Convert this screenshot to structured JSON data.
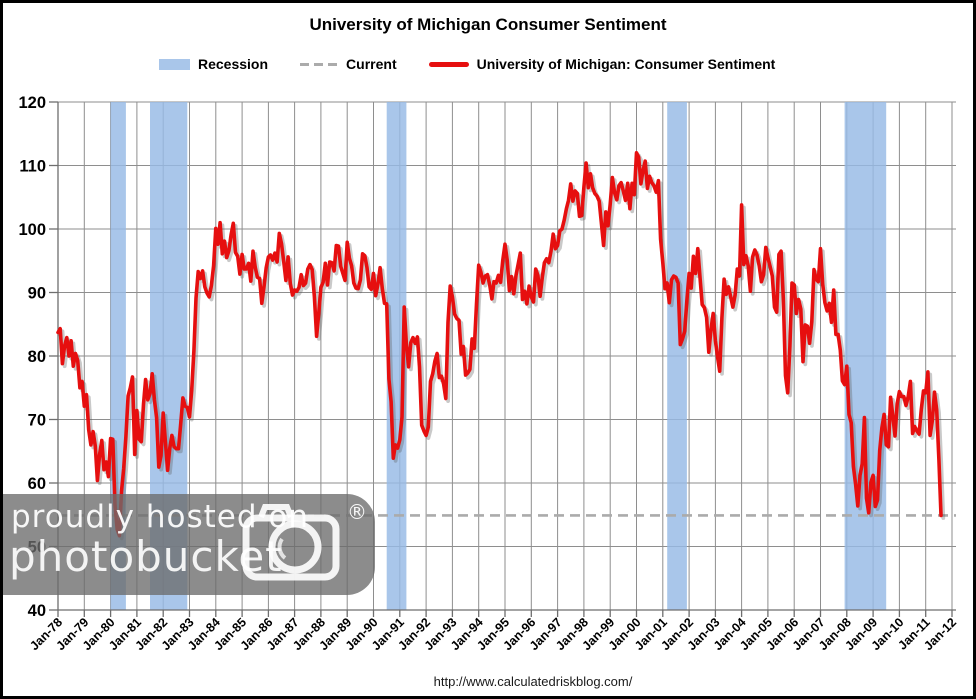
{
  "title": "University of Michigan Consumer Sentiment",
  "legend": {
    "recession_label": "Recession",
    "current_label": "Current",
    "series_label": "University of Michigan: Consumer Sentiment"
  },
  "footer_url": "http://www.calculatedriskblog.com/",
  "watermark": {
    "line1": "proudly hosted on",
    "line2": "photobucket",
    "registered_mark": "®"
  },
  "colors": {
    "series": "#E60F0F",
    "series_shadow": "rgba(90,90,90,0.33)",
    "recession_band": "#A9C6EA",
    "recession_band_rgba": "rgba(150,185,229,0.82)",
    "current_line": "#ABABAB",
    "gridline": "#8E8E8E",
    "axis": "#6E6E6E",
    "text": "#000000"
  },
  "chart_data": {
    "type": "line",
    "title": "University of Michigan Consumer Sentiment",
    "xlabel": "",
    "ylabel": "",
    "grid": true,
    "legend_position": "top",
    "ylim": [
      40,
      120
    ],
    "xlim_years": [
      1978,
      2012
    ],
    "y_ticks": [
      40,
      50,
      60,
      70,
      80,
      90,
      100,
      110,
      120
    ],
    "x_tick_labels": [
      "Jan-78",
      "Jan-79",
      "Jan-80",
      "Jan-81",
      "Jan-82",
      "Jan-83",
      "Jan-84",
      "Jan-85",
      "Jan-86",
      "Jan-87",
      "Jan-88",
      "Jan-89",
      "Jan-90",
      "Jan-91",
      "Jan-92",
      "Jan-93",
      "Jan-94",
      "Jan-95",
      "Jan-96",
      "Jan-97",
      "Jan-98",
      "Jan-99",
      "Jan-00",
      "Jan-01",
      "Jan-02",
      "Jan-03",
      "Jan-04",
      "Jan-05",
      "Jan-06",
      "Jan-07",
      "Jan-08",
      "Jan-09",
      "Jan-10",
      "Jan-11",
      "Jan-12"
    ],
    "current_value": 54.9,
    "recession_bands_years": [
      [
        1980.0,
        1980.583
      ],
      [
        1981.5,
        1982.917
      ],
      [
        1990.5,
        1991.25
      ],
      [
        2001.167,
        2001.917
      ],
      [
        2007.917,
        2009.5
      ]
    ],
    "series": [
      {
        "name": "University of Michigan: Consumer Sentiment",
        "start": "Jan-1978",
        "frequency": "monthly",
        "values": [
          83.7,
          84.3,
          78.8,
          81.6,
          82.9,
          80.0,
          82.4,
          78.4,
          80.4,
          79.3,
          75.0,
          76.0,
          72.1,
          73.9,
          68.4,
          66.0,
          68.1,
          65.8,
          60.4,
          64.5,
          66.7,
          62.1,
          63.3,
          61.0,
          67.0,
          66.9,
          56.5,
          52.7,
          51.7,
          58.7,
          62.3,
          67.3,
          73.7,
          75.0,
          76.7,
          64.5,
          71.4,
          66.9,
          66.5,
          72.4,
          76.3,
          73.1,
          74.1,
          77.2,
          73.1,
          70.3,
          62.5,
          64.3,
          71.0,
          66.5,
          62.0,
          65.5,
          67.5,
          65.7,
          65.4,
          65.4,
          69.3,
          73.4,
          72.1,
          71.9,
          70.4,
          74.6,
          80.8,
          89.1,
          93.3,
          92.2,
          93.4,
          90.9,
          89.9,
          89.3,
          91.1,
          94.2,
          100.1,
          97.6,
          101.0,
          96.1,
          98.1,
          95.5,
          96.6,
          99.1,
          100.9,
          96.3,
          95.7,
          92.9,
          96.0,
          93.7,
          93.7,
          94.6,
          91.8,
          96.5,
          94.0,
          92.4,
          92.2,
          88.3,
          90.9,
          93.9,
          95.6,
          95.9,
          95.1,
          96.2,
          94.8,
          99.3,
          97.7,
          94.9,
          91.9,
          95.6,
          91.4,
          89.6,
          90.4,
          90.2,
          90.8,
          92.8,
          91.1,
          91.5,
          93.7,
          94.4,
          93.6,
          89.3,
          83.1,
          86.8,
          90.8,
          91.6,
          94.6,
          91.2,
          94.8,
          94.7,
          93.4,
          97.4,
          97.3,
          94.1,
          93.0,
          91.9,
          97.9,
          95.4,
          94.2,
          91.5,
          90.7,
          90.6,
          92.0,
          96.1,
          95.8,
          93.9,
          90.9,
          90.5,
          93.0,
          89.5,
          91.3,
          93.9,
          90.6,
          88.3,
          88.2,
          76.4,
          72.8,
          63.9,
          66.0,
          65.5,
          66.8,
          70.4,
          87.7,
          81.8,
          78.3,
          82.1,
          82.9,
          82.0,
          83.0,
          78.3,
          69.1,
          68.2,
          67.5,
          68.8,
          76.0,
          77.2,
          79.2,
          80.4,
          76.6,
          76.8,
          75.6,
          73.3,
          85.3,
          91.0,
          89.3,
          86.6,
          85.9,
          85.6,
          80.3,
          81.5,
          77.0,
          77.3,
          77.9,
          82.7,
          81.2,
          88.2,
          94.3,
          93.2,
          91.5,
          92.6,
          92.8,
          91.2,
          89.0,
          91.7,
          91.5,
          92.7,
          91.6,
          95.1,
          97.6,
          95.1,
          90.3,
          92.5,
          89.8,
          92.7,
          94.4,
          96.2,
          88.9,
          90.2,
          88.2,
          91.0,
          89.3,
          88.5,
          93.7,
          92.7,
          89.4,
          92.4,
          94.7,
          95.3,
          94.7,
          96.5,
          99.2,
          96.9,
          97.4,
          99.7,
          100.0,
          101.4,
          103.2,
          104.5,
          107.1,
          104.4,
          106.0,
          105.6,
          102.0,
          102.1,
          106.6,
          110.4,
          106.5,
          108.7,
          106.5,
          105.6,
          105.2,
          104.4,
          100.9,
          97.4,
          102.7,
          100.5,
          103.9,
          108.1,
          105.7,
          104.6,
          106.8,
          107.3,
          106.0,
          104.5,
          107.2,
          103.2,
          107.2,
          105.4,
          112.0,
          111.3,
          107.1,
          109.2,
          110.7,
          106.4,
          108.3,
          107.3,
          106.8,
          105.8,
          107.6,
          98.4,
          94.7,
          90.6,
          91.5,
          88.4,
          92.0,
          92.6,
          92.4,
          91.5,
          81.8,
          82.7,
          83.9,
          88.8,
          93.0,
          90.7,
          95.7,
          93.0,
          96.9,
          92.4,
          88.1,
          87.6,
          86.1,
          80.6,
          84.2,
          86.7,
          82.4,
          79.9,
          77.6,
          86.0,
          92.1,
          89.7,
          90.9,
          89.3,
          87.7,
          89.6,
          93.7,
          92.6,
          103.8,
          94.4,
          95.8,
          94.2,
          90.2,
          95.6,
          96.7,
          95.9,
          94.2,
          91.7,
          92.8,
          97.1,
          95.5,
          94.1,
          92.6,
          87.7,
          86.9,
          96.0,
          96.5,
          89.1,
          76.9,
          74.2,
          81.6,
          91.5,
          91.2,
          86.7,
          88.9,
          87.4,
          79.1,
          84.9,
          84.7,
          82.0,
          85.4,
          93.6,
          92.1,
          91.7,
          96.9,
          91.3,
          88.4,
          87.1,
          88.3,
          85.3,
          90.4,
          83.4,
          83.4,
          80.9,
          76.1,
          75.5,
          78.4,
          70.8,
          69.5,
          62.6,
          59.8,
          56.4,
          61.2,
          63.0,
          70.3,
          57.6,
          55.3,
          60.1,
          61.2,
          56.3,
          57.3,
          65.1,
          68.7,
          70.8,
          66.0,
          65.7,
          73.5,
          70.6,
          67.4,
          72.5,
          74.4,
          73.6,
          73.6,
          72.2,
          73.6,
          76.0,
          67.8,
          68.9,
          68.2,
          67.7,
          71.6,
          74.5,
          74.2,
          77.5,
          67.5,
          69.8,
          74.3,
          71.5,
          63.7,
          54.9
        ]
      }
    ]
  }
}
